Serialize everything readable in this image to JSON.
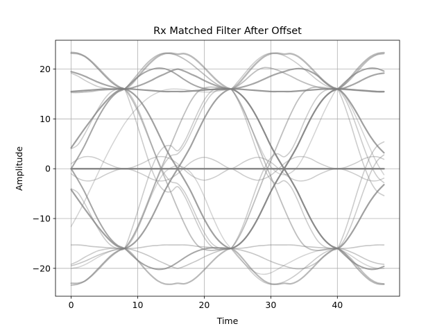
{
  "chart_data": {
    "type": "line",
    "title": "Rx Matched Filter After Offset",
    "xlabel": "Time",
    "ylabel": "Amplitude",
    "xlim": [
      -2.35,
      49.35
    ],
    "ylim": [
      -25.6,
      25.8
    ],
    "xticks": [
      0,
      10,
      20,
      30,
      40
    ],
    "yticks": [
      -20,
      -10,
      0,
      10,
      20
    ],
    "xtick_labels": [
      "0",
      "10",
      "20",
      "30",
      "40"
    ],
    "ytick_labels": [
      "−20",
      "−10",
      "0",
      "10",
      "20"
    ],
    "grid": true,
    "legend": "none",
    "trace_color": "#808080",
    "symbol_period": 16,
    "eye_crossing_times": [
      8,
      24,
      40
    ],
    "x_range": [
      0,
      47
    ],
    "series": [
      {
        "values": [
          0,
          0,
          0,
          0,
          0,
          0,
          0,
          0,
          0,
          0,
          0,
          0,
          0,
          0,
          0,
          0,
          0,
          0,
          0,
          0,
          0,
          0,
          0,
          0,
          0,
          0,
          0,
          0,
          0,
          0,
          0,
          0,
          0,
          0,
          0,
          0,
          0,
          0,
          0,
          0,
          0,
          0,
          0,
          0,
          0,
          0,
          0,
          0
        ],
        "opacity": 0.9,
        "width": 2.5
      },
      {
        "values": [
          19.5,
          19.1,
          18.6,
          18.0,
          17.4,
          16.9,
          16.5,
          16.2,
          16,
          16.2,
          16.6,
          17.1,
          17.7,
          18.4,
          19.0,
          19.6,
          20,
          19.6,
          19.0,
          18.4,
          17.7,
          17.1,
          16.6,
          16.2,
          16,
          16.2,
          16.5,
          16.9,
          17.4,
          18.0,
          18.6,
          19.1,
          19.5,
          19.9,
          20.1,
          20.0,
          19.5,
          18.7,
          17.5,
          16.5,
          16,
          16.2,
          16.7,
          17.3,
          18.0,
          18.6,
          19.0,
          19.2
        ],
        "opacity": 0.7,
        "width": 2.2
      },
      {
        "values": [
          23.2,
          23.1,
          22.6,
          21.6,
          20.3,
          18.9,
          17.6,
          16.6,
          16,
          16.9,
          18.4,
          20.0,
          21.4,
          22.5,
          23.1,
          23.2,
          23.0,
          23.1,
          22.6,
          21.6,
          20.3,
          18.9,
          17.6,
          16.6,
          16,
          16.9,
          18.4,
          20.0,
          21.4,
          22.5,
          23.1,
          23.2,
          23.0,
          23.1,
          22.6,
          21.6,
          20.3,
          18.9,
          17.6,
          16.6,
          16,
          16.9,
          18.4,
          20.0,
          21.4,
          22.5,
          23.1,
          23.3
        ],
        "opacity": 0.55,
        "width": 2.5
      },
      {
        "values": [
          15.5,
          15.6,
          15.7,
          15.8,
          15.9,
          16.0,
          16.0,
          16.0,
          16,
          16.0,
          15.9,
          15.8,
          15.7,
          15.6,
          15.5,
          15.5,
          15.5,
          15.5,
          15.6,
          15.7,
          15.8,
          15.9,
          16.0,
          16.0,
          16,
          16.0,
          15.9,
          15.8,
          15.7,
          15.6,
          15.5,
          15.5,
          15.5,
          15.5,
          15.6,
          15.7,
          15.8,
          15.9,
          16.0,
          16.0,
          16,
          16.0,
          15.9,
          15.8,
          15.7,
          15.6,
          15.5,
          15.5
        ],
        "opacity": 0.8,
        "width": 2.2
      },
      {
        "values": [
          4.2,
          6.1,
          8.0,
          9.8,
          11.6,
          13.2,
          14.6,
          15.6,
          16,
          15.4,
          14.2,
          12.4,
          10.1,
          7.4,
          4.6,
          2.2,
          0,
          -2.2,
          -4.6,
          -7.4,
          -10.1,
          -12.4,
          -14.2,
          -15.4,
          -16,
          -15.4,
          -14.2,
          -12.4,
          -10.1,
          -7.4,
          -4.6,
          -2.2,
          0,
          2.2,
          4.6,
          7.4,
          10.1,
          12.4,
          14.2,
          15.4,
          16,
          15.0,
          13.2,
          11.0,
          8.6,
          6.4,
          4.6,
          3.2
        ],
        "opacity": 0.75,
        "width": 2.2
      },
      {
        "values": [
          -4.2,
          -6.1,
          -8.0,
          -9.8,
          -11.6,
          -13.2,
          -14.6,
          -15.6,
          -16,
          -15.4,
          -14.2,
          -12.4,
          -10.1,
          -7.4,
          -4.6,
          -2.2,
          0,
          2.2,
          4.6,
          7.4,
          10.1,
          12.4,
          14.2,
          15.4,
          16,
          15.4,
          14.2,
          12.4,
          10.1,
          7.4,
          4.6,
          2.2,
          0,
          -2.2,
          -4.6,
          -7.4,
          -10.1,
          -12.4,
          -14.2,
          -15.4,
          -16,
          -15.0,
          -13.2,
          -11.0,
          -8.6,
          -6.4,
          -4.6,
          -3.2
        ],
        "opacity": 0.75,
        "width": 2.2
      },
      {
        "values": [
          -19.5,
          -19.1,
          -18.6,
          -18.0,
          -17.4,
          -16.9,
          -16.5,
          -16.2,
          -16,
          -16.2,
          -16.6,
          -17.1,
          -17.7,
          -18.4,
          -19.0,
          -19.6,
          -20,
          -19.6,
          -19.0,
          -18.4,
          -17.7,
          -17.1,
          -16.6,
          -16.2,
          -16,
          -16.2,
          -16.5,
          -16.9,
          -17.4,
          -18.0,
          -18.6,
          -19.1,
          -19.5,
          -19.9,
          -20.1,
          -20.0,
          -19.5,
          -18.7,
          -17.5,
          -16.5,
          -16,
          -16.2,
          -16.7,
          -17.3,
          -18.0,
          -18.6,
          -19.0,
          -19.2
        ],
        "opacity": 0.45,
        "width": 1.6
      },
      {
        "values": [
          -23.0,
          -23.0,
          -22.6,
          -21.6,
          -20.3,
          -18.9,
          -17.6,
          -16.6,
          -16,
          -16.9,
          -18.4,
          -20.0,
          -21.4,
          -22.5,
          -23.1,
          -23.2,
          -23.0,
          -23.1,
          -22.6,
          -21.6,
          -20.3,
          -18.9,
          -17.6,
          -16.6,
          -16,
          -16.9,
          -18.4,
          -20.0,
          -21.4,
          -22.5,
          -23.1,
          -23.2,
          -23.0,
          -23.1,
          -22.6,
          -21.6,
          -20.3,
          -18.9,
          -17.6,
          -16.6,
          -16,
          -16.9,
          -18.4,
          -20.0,
          -21.4,
          -22.5,
          -23.1,
          -23.2
        ],
        "opacity": 0.55,
        "width": 2.2
      },
      {
        "values": [
          -15.3,
          -15.3,
          -15.4,
          -15.6,
          -15.7,
          -15.8,
          -15.9,
          -16.0,
          -16,
          -16.0,
          -15.9,
          -15.7,
          -15.5,
          -15.4,
          -15.3,
          -15.3,
          -15.3,
          -15.3,
          -15.4,
          -15.6,
          -15.7,
          -15.8,
          -15.9,
          -16.0,
          -16,
          -16.0,
          -15.9,
          -15.7,
          -15.5,
          -15.4,
          -15.3,
          -15.3,
          -15.3,
          -15.3,
          -15.4,
          -15.6,
          -15.7,
          -15.8,
          -15.9,
          -16.0,
          -16,
          -16.0,
          -15.9,
          -15.7,
          -15.5,
          -15.4,
          -15.3,
          -15.3
        ],
        "opacity": 0.45,
        "width": 1.6
      },
      {
        "values": [
          0,
          2.2,
          4.6,
          7.4,
          10.1,
          12.4,
          14.2,
          15.4,
          16,
          17.2,
          18.4,
          19.3,
          19.9,
          20.2,
          20.1,
          19.6,
          18.8,
          17.9,
          17.1,
          16.5,
          16.1,
          15.9,
          15.9,
          15.9,
          16,
          15.4,
          14.2,
          12.4,
          10.1,
          7.4,
          4.6,
          2.2,
          0,
          -2.2,
          -4.6,
          -7.4,
          -10.1,
          -12.4,
          -14.2,
          -15.4,
          -16,
          -17.2,
          -18.4,
          -19.3,
          -19.9,
          -20.2,
          -20.1,
          -19.6
        ],
        "opacity": 0.7,
        "width": 2.0
      },
      {
        "values": [
          0,
          -2.2,
          -4.6,
          -7.4,
          -10.1,
          -12.4,
          -14.2,
          -15.4,
          -16,
          -17.2,
          -18.4,
          -19.3,
          -19.9,
          -20.2,
          -20.1,
          -19.6,
          -18.8,
          -17.9,
          -17.1,
          -16.5,
          -16.1,
          -15.9,
          -15.9,
          -15.9,
          -16,
          -15.4,
          -14.2,
          -12.4,
          -10.1,
          -7.4,
          -4.6,
          -2.2,
          0,
          2.2,
          4.6,
          7.4,
          10.1,
          12.4,
          14.2,
          15.4,
          16,
          17.2,
          18.4,
          19.3,
          19.9,
          20.2,
          20.1,
          19.6
        ],
        "opacity": 0.7,
        "width": 2.0
      },
      {
        "values": [
          1.0,
          1.9,
          2.4,
          2.4,
          2.0,
          1.3,
          0.7,
          0.2,
          0,
          0.2,
          0.7,
          1.3,
          2.0,
          2.4,
          2.4,
          1.9,
          1.0,
          -0.2,
          -1.3,
          -2.0,
          -2.3,
          -2.0,
          -1.4,
          -0.6,
          0,
          -0.6,
          -1.4,
          -2.0,
          -2.3,
          -2.0,
          -1.3,
          -0.2,
          1.0,
          1.9,
          2.4,
          2.4,
          2.0,
          1.3,
          0.7,
          0.2,
          0,
          0.2,
          0.7,
          1.3,
          2.0,
          2.4,
          2.4,
          1.9
        ],
        "opacity": 0.4,
        "width": 1.5
      },
      {
        "values": [
          -1.0,
          -1.9,
          -2.4,
          -2.4,
          -2.0,
          -1.3,
          -0.7,
          -0.2,
          0,
          -0.2,
          -0.7,
          -1.3,
          -2.0,
          -2.4,
          -2.4,
          -1.9,
          -1.0,
          0.2,
          1.3,
          2.0,
          2.3,
          2.0,
          1.4,
          0.6,
          0,
          0.6,
          1.4,
          2.0,
          2.3,
          2.0,
          1.3,
          0.2,
          -1.0,
          -1.9,
          -2.4,
          -2.4,
          -2.0,
          -1.3,
          -0.7,
          -0.2,
          0,
          -0.2,
          -0.7,
          -1.3,
          -2.0,
          -2.4,
          -2.4,
          -1.9
        ],
        "opacity": 0.4,
        "width": 1.5
      },
      {
        "values": [
          -11.6,
          -9.2,
          -6.6,
          -3.8,
          -1.0,
          1.8,
          4.4,
          6.8,
          9.0,
          10.8,
          12.3,
          13.6,
          14.6,
          15.3,
          15.8,
          16.0,
          16.0,
          15.9,
          15.7,
          15.5,
          15.4,
          15.4,
          15.6,
          15.8,
          16,
          14.0,
          11.4,
          8.4,
          5.4,
          2.6,
          0.4,
          -0.8,
          -1.2,
          -0.8,
          0.4,
          2.6,
          5.4,
          8.4,
          11.4,
          14.0,
          16,
          14.8,
          12.6,
          9.8,
          6.8,
          3.8,
          1.0,
          -1.2
        ],
        "opacity": 0.35,
        "width": 1.5
      },
      {
        "values": [
          -20.0,
          -19.8,
          -19.3,
          -18.6,
          -17.8,
          -17.1,
          -16.5,
          -16.1,
          -16,
          -14.3,
          -11.8,
          -8.8,
          -5.6,
          -2.8,
          -0.8,
          0.2,
          0.6,
          0.2,
          -0.8,
          -2.8,
          -5.6,
          -8.8,
          -11.8,
          -14.3,
          -16,
          -17.6,
          -19.0,
          -20.2,
          -21.0,
          -21.2,
          -20.9,
          -20.2,
          -19.4,
          -18.7,
          -18.0,
          -17.4,
          -16.9,
          -16.5,
          -16.2,
          -16.0,
          -16,
          -16.6,
          -17.4,
          -18.3,
          -19.1,
          -19.7,
          -20.0,
          -20.0
        ],
        "opacity": 0.35,
        "width": 1.5
      },
      {
        "values": [
          15.3,
          15.3,
          15.4,
          15.5,
          15.7,
          15.8,
          15.9,
          16.0,
          16,
          17.4,
          19.0,
          20.6,
          21.9,
          22.8,
          23.2,
          23.1,
          22.7,
          22.0,
          21.1,
          20.0,
          18.9,
          17.8,
          16.9,
          16.3,
          16,
          16.6,
          17.6,
          18.8,
          19.8,
          20.3,
          20.2,
          19.8,
          19.2,
          18.6,
          17.9,
          17.3,
          16.8,
          16.4,
          16.1,
          16.0,
          16,
          15.9,
          15.8,
          15.7,
          15.6,
          15.5,
          15.4,
          15.4
        ],
        "opacity": 0.5,
        "width": 1.8
      },
      {
        "values": [
          4.0,
          4.8,
          6.9,
          9.4,
          11.9,
          14.0,
          15.4,
          16.0,
          16,
          14.6,
          12.1,
          8.8,
          5.2,
          1.8,
          -1.0,
          -2.6,
          -3.0,
          -4.6,
          -7.2,
          -10.1,
          -12.8,
          -14.8,
          -15.8,
          -16.1,
          -16,
          -13.9,
          -10.8,
          -7.0,
          -3.2,
          0.0,
          2.2,
          3.0,
          2.4,
          3.6,
          6.2,
          9.4,
          12.2,
          14.4,
          15.6,
          16.0,
          16,
          14.4,
          11.6,
          8.0,
          4.2,
          0.8,
          -1.6,
          -2.8
        ],
        "opacity": 0.4,
        "width": 1.6
      },
      {
        "values": [
          -4.0,
          -4.8,
          -6.9,
          -9.4,
          -11.9,
          -14.0,
          -15.4,
          -16.0,
          -16,
          -14.6,
          -12.1,
          -8.8,
          -5.2,
          -1.8,
          1.0,
          2.6,
          3.0,
          4.6,
          7.2,
          10.1,
          12.8,
          14.8,
          15.8,
          16.1,
          16,
          13.9,
          10.8,
          7.0,
          3.2,
          0.0,
          -2.2,
          -3.0,
          -2.4,
          -3.6,
          -6.2,
          -9.4,
          -12.2,
          -14.4,
          -15.6,
          -16.0,
          -16,
          -14.4,
          -11.6,
          -8.0,
          -4.2,
          -0.8,
          1.6,
          2.8
        ],
        "opacity": 0.4,
        "width": 1.6
      },
      {
        "values": [
          23.4,
          23.2,
          22.6,
          21.5,
          20.1,
          18.7,
          17.4,
          16.5,
          16,
          14.2,
          11.6,
          8.4,
          5.0,
          1.6,
          -1.6,
          -4.8,
          -8.0,
          -11.0,
          -13.6,
          -15.4,
          -16.2,
          -16.4,
          -16.3,
          -16.1,
          -16,
          -14.2,
          -11.6,
          -8.4,
          -5.0,
          -1.6,
          1.6,
          4.8,
          8.0,
          11.0,
          13.6,
          15.4,
          16.2,
          16.4,
          16.3,
          16.1,
          16,
          16.8,
          18.0,
          19.5,
          21.0,
          22.2,
          22.9,
          23.1
        ],
        "opacity": 0.5,
        "width": 1.8
      },
      {
        "values": [
          -23.4,
          -23.2,
          -22.6,
          -21.5,
          -20.1,
          -18.7,
          -17.4,
          -16.5,
          -16,
          -14.2,
          -11.6,
          -8.4,
          -5.0,
          -1.6,
          1.6,
          4.8,
          8.0,
          11.0,
          13.6,
          15.4,
          16.2,
          16.4,
          16.3,
          16.1,
          16,
          14.2,
          11.6,
          8.4,
          5.0,
          1.6,
          -1.6,
          -4.8,
          -8.0,
          -11.0,
          -13.6,
          -15.4,
          -16.2,
          -16.4,
          -16.3,
          -16.1,
          -16,
          -16.8,
          -18.0,
          -19.5,
          -21.0,
          -22.2,
          -22.9,
          -23.1
        ],
        "opacity": 0.5,
        "width": 1.8
      },
      {
        "values": [
          19.2,
          18.6,
          17.8,
          17.1,
          16.5,
          16.2,
          16.0,
          16.0,
          16,
          12.6,
          8.5,
          4.2,
          0.2,
          -2.8,
          -4.4,
          -4.6,
          -3.6,
          -5.4,
          -8.2,
          -11.2,
          -13.8,
          -15.5,
          -16.2,
          -16.2,
          -16,
          -17.4,
          -19.0,
          -20.6,
          -21.9,
          -22.8,
          -23.2,
          -23.1,
          -22.7,
          -22.0,
          -21.1,
          -20.0,
          -18.9,
          -17.8,
          -16.9,
          -16.3,
          -16,
          -13.0,
          -9.0,
          -4.6,
          -0.6,
          2.6,
          4.6,
          5.4
        ],
        "opacity": 0.4,
        "width": 1.6
      },
      {
        "values": [
          -19.2,
          -18.6,
          -17.8,
          -17.1,
          -16.5,
          -16.2,
          -16.0,
          -16.0,
          -16,
          -12.6,
          -8.5,
          -4.2,
          -0.2,
          2.8,
          4.4,
          4.6,
          3.6,
          5.4,
          8.2,
          11.2,
          13.8,
          15.5,
          16.2,
          16.2,
          16,
          17.4,
          19.0,
          20.6,
          21.9,
          22.8,
          23.2,
          23.1,
          22.7,
          22.0,
          21.1,
          20.0,
          18.9,
          17.8,
          16.9,
          16.3,
          16,
          13.0,
          9.0,
          4.6,
          0.6,
          -2.6,
          -4.6,
          -5.4
        ],
        "opacity": 0.4,
        "width": 1.6
      }
    ]
  }
}
